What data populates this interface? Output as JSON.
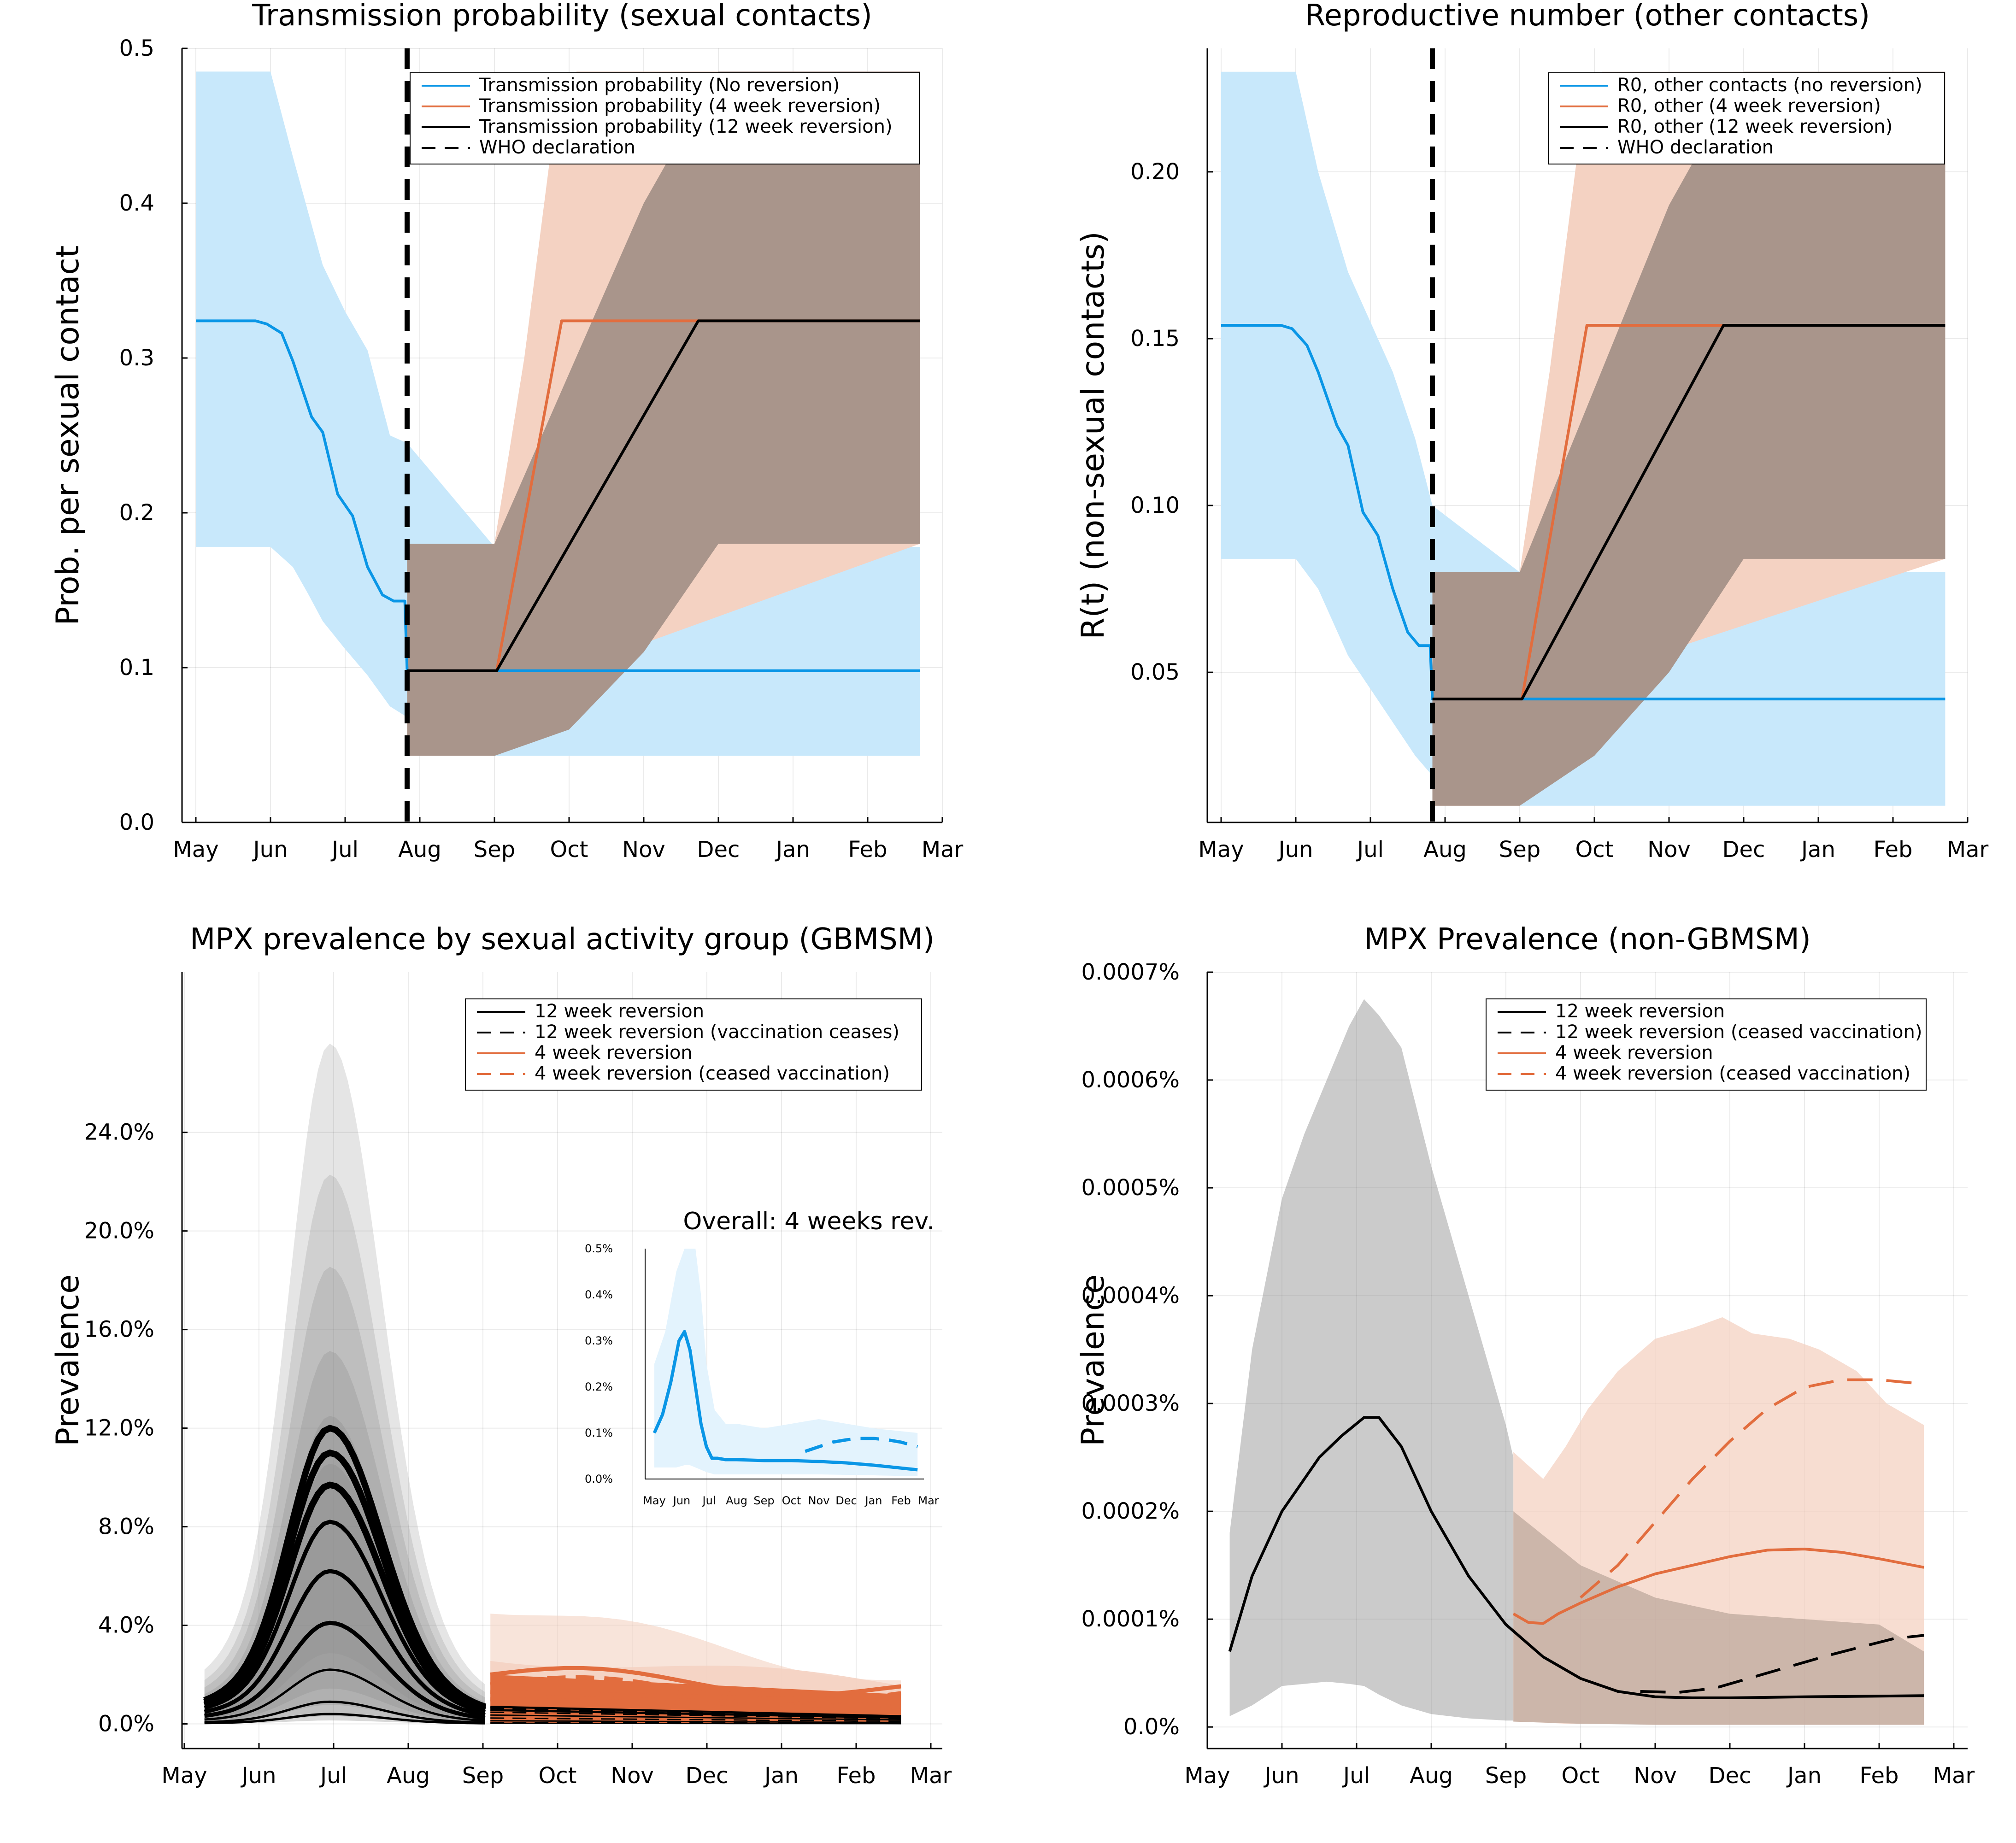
{
  "months": [
    "May",
    "Jun",
    "Jul",
    "Aug",
    "Sep",
    "Oct",
    "Nov",
    "Dec",
    "Jan",
    "Feb",
    "Mar"
  ],
  "colors": {
    "blue": "#0a96e6",
    "orange": "#e26d3e",
    "black": "#000000",
    "blue_band": "#c8e8fb",
    "orange_band": "#f4d2c2",
    "brown_band": "#a9958b",
    "dark_band": "#8c8c8c"
  },
  "chart_data": [
    {
      "id": "p1",
      "type": "line",
      "title": "Transmission probability (sexual contacts)",
      "xlabel": "",
      "ylabel": "Prob. per sexual contact",
      "yticks": [
        "0.0",
        "0.1",
        "0.2",
        "0.3",
        "0.4",
        "0.5"
      ],
      "ylim": [
        0,
        0.5
      ],
      "legend": [
        "Transmission probability (No reversion)",
        "Transmission probability (4 week reversion)",
        "Transmission probability (12 week reversion)",
        "WHO declaration"
      ],
      "who_declaration": 2.83,
      "series": [
        {
          "name": "Transmission probability (No reversion)",
          "color": "blue",
          "x": [
            0,
            0.5,
            0.8,
            0.95,
            1.15,
            1.3,
            1.55,
            1.7,
            1.9,
            2.1,
            2.3,
            2.5,
            2.65,
            2.8,
            2.83,
            2.9,
            4,
            9.7
          ],
          "y": [
            0.324,
            0.324,
            0.324,
            0.322,
            0.316,
            0.298,
            0.262,
            0.252,
            0.212,
            0.198,
            0.165,
            0.147,
            0.143,
            0.143,
            0.098,
            0.098,
            0.098,
            0.098
          ],
          "band": {
            "color": "blue_band",
            "x": [
              0,
              1,
              1.3,
              1.5,
              1.7,
              2,
              2.3,
              2.6,
              2.83,
              4,
              9.7
            ],
            "lo": [
              0.178,
              0.178,
              0.165,
              0.148,
              0.13,
              0.112,
              0.095,
              0.075,
              0.068,
              0.043,
              0.043
            ],
            "hi": [
              0.485,
              0.485,
              0.43,
              0.395,
              0.36,
              0.33,
              0.305,
              0.25,
              0.245,
              0.178,
              0.178
            ]
          }
        },
        {
          "name": "Transmission probability (4 week reversion)",
          "color": "orange",
          "x": [
            2.83,
            4.03,
            4.9,
            9.7
          ],
          "y": [
            0.098,
            0.098,
            0.324,
            0.324
          ],
          "band": {
            "color": "orange_band",
            "x": [
              2.83,
              4,
              4.4,
              4.8,
              5.1,
              9.7
            ],
            "lo": [
              0.043,
              0.043,
              0.06,
              0.08,
              0.1,
              0.18
            ],
            "hi": [
              0.18,
              0.18,
              0.3,
              0.45,
              0.485,
              0.485
            ]
          }
        },
        {
          "name": "Transmission probability (12 week reversion)",
          "color": "black",
          "x": [
            2.83,
            4.03,
            6.73,
            9.7
          ],
          "y": [
            0.098,
            0.098,
            0.324,
            0.324
          ],
          "band": {
            "color": "brown_band",
            "x": [
              2.83,
              4,
              5,
              6,
              7,
              9.7
            ],
            "lo": [
              0.043,
              0.043,
              0.06,
              0.11,
              0.18,
              0.18
            ],
            "hi": [
              0.18,
              0.18,
              0.29,
              0.4,
              0.485,
              0.485
            ]
          }
        }
      ]
    },
    {
      "id": "p2",
      "type": "line",
      "title": "Reproductive number (other contacts)",
      "xlabel": "",
      "ylabel": "R(t) (non-sexual contacts)",
      "yticks": [
        "0.05",
        "0.10",
        "0.15",
        "0.20"
      ],
      "ylim": [
        0.005,
        0.237
      ],
      "legend": [
        "R0, other contacts (no reversion)",
        "R0, other (4 week reversion)",
        "R0, other (12 week reversion)",
        "WHO declaration"
      ],
      "who_declaration": 2.83,
      "series": [
        {
          "name": "R0, other contacts (no reversion)",
          "color": "blue",
          "x": [
            0,
            0.5,
            0.8,
            0.95,
            1.15,
            1.3,
            1.55,
            1.7,
            1.9,
            2.1,
            2.3,
            2.5,
            2.65,
            2.8,
            2.83,
            2.9,
            4,
            9.7
          ],
          "y": [
            0.154,
            0.154,
            0.154,
            0.153,
            0.148,
            0.14,
            0.124,
            0.118,
            0.098,
            0.091,
            0.075,
            0.062,
            0.058,
            0.058,
            0.042,
            0.042,
            0.042,
            0.042
          ],
          "band": {
            "color": "blue_band",
            "x": [
              0,
              1,
              1.3,
              1.5,
              1.7,
              2,
              2.3,
              2.6,
              2.83,
              4,
              9.7
            ],
            "lo": [
              0.084,
              0.084,
              0.075,
              0.065,
              0.055,
              0.045,
              0.035,
              0.025,
              0.019,
              0.01,
              0.01
            ],
            "hi": [
              0.23,
              0.23,
              0.2,
              0.185,
              0.17,
              0.155,
              0.14,
              0.12,
              0.1,
              0.08,
              0.08
            ]
          }
        },
        {
          "name": "R0, other (4 week reversion)",
          "color": "orange",
          "x": [
            2.83,
            4.03,
            4.9,
            9.7
          ],
          "y": [
            0.042,
            0.042,
            0.154,
            0.154
          ],
          "band": {
            "color": "orange_band",
            "x": [
              2.83,
              4,
              4.4,
              4.8,
              5.1,
              9.7
            ],
            "lo": [
              0.01,
              0.01,
              0.02,
              0.035,
              0.05,
              0.084
            ],
            "hi": [
              0.08,
              0.08,
              0.14,
              0.21,
              0.23,
              0.23
            ]
          }
        },
        {
          "name": "R0, other (12 week reversion)",
          "color": "black",
          "x": [
            2.83,
            4.03,
            6.73,
            9.7
          ],
          "y": [
            0.042,
            0.042,
            0.154,
            0.154
          ],
          "band": {
            "color": "brown_band",
            "x": [
              2.83,
              4,
              5,
              6,
              7,
              9.7
            ],
            "lo": [
              0.01,
              0.01,
              0.025,
              0.05,
              0.084,
              0.084
            ],
            "hi": [
              0.08,
              0.08,
              0.135,
              0.19,
              0.23,
              0.23
            ]
          }
        }
      ]
    },
    {
      "id": "p3",
      "type": "line",
      "title": "MPX prevalence by sexual activity group (GBMSM)",
      "xlabel": "",
      "ylabel": "Prevalence",
      "yticks": [
        "0.0%",
        "4.0%",
        "8.0%",
        "12.0%",
        "16.0%",
        "20.0%",
        "24.0%"
      ],
      "ylim": [
        -0.01,
        0.305
      ],
      "legend": [
        "12 week reversion",
        "12 week reversion (vaccination ceases)",
        "4 week reversion",
        "4 week reversion (ceased vaccination)"
      ],
      "group_peaks": [
        0.12,
        0.11,
        0.097,
        0.082,
        0.062,
        0.041,
        0.022,
        0.009,
        0.004
      ],
      "x_start": 0.27,
      "x_peak": 1.95,
      "x_switch": 4.1,
      "x_end": 9.6,
      "late_values": [
        0.02,
        0.016,
        0.013,
        0.01
      ],
      "inset": {
        "title": "Overall: 4 weeks rev.",
        "yticks": [
          "0.0%",
          "0.1%",
          "0.2%",
          "0.3%",
          "0.4%",
          "0.5%"
        ],
        "ylim": [
          0,
          0.005
        ],
        "series": [
          {
            "name": "",
            "color": "blue",
            "style": "solid",
            "x": [
              0,
              0.3,
              0.6,
              0.9,
              1.1,
              1.3,
              1.5,
              1.7,
              1.9,
              2.1,
              2.3,
              2.6,
              3,
              4,
              5,
              6,
              7,
              8,
              9.6
            ],
            "y": [
              0.001,
              0.0014,
              0.0021,
              0.003,
              0.0032,
              0.0028,
              0.002,
              0.0012,
              0.0007,
              0.00045,
              0.00045,
              0.00042,
              0.00042,
              0.0004,
              0.0004,
              0.00038,
              0.00035,
              0.0003,
              0.0002
            ]
          },
          {
            "name": "",
            "color": "blue",
            "style": "dashed",
            "x": [
              5.5,
              6,
              6.5,
              7,
              7.5,
              8,
              8.5,
              9,
              9.6
            ],
            "y": [
              0.0006,
              0.0007,
              0.0008,
              0.00085,
              0.00088,
              0.00088,
              0.00085,
              0.0008,
              0.0007
            ]
          }
        ],
        "band": {
          "x": [
            0,
            0.4,
            0.8,
            1.1,
            1.3,
            1.5,
            1.7,
            1.9,
            2.2,
            2.6,
            3,
            4,
            5,
            6,
            7,
            8,
            9.6
          ],
          "lo": [
            0.00025,
            0.00025,
            0.00025,
            0.0003,
            0.0003,
            0.00025,
            0.0002,
            0.00015,
            0.0001,
            0.0001,
            0.0001,
            0.0001,
            0.0001,
            0.0001,
            9e-05,
            8e-05,
            6e-05
          ],
          "hi": [
            0.0025,
            0.0032,
            0.0045,
            0.005,
            0.005,
            0.005,
            0.004,
            0.0025,
            0.0015,
            0.0012,
            0.0012,
            0.0011,
            0.0012,
            0.0013,
            0.0012,
            0.0011,
            0.001
          ]
        }
      }
    },
    {
      "id": "p4",
      "type": "line",
      "title": "MPX Prevalence (non-GBMSM)",
      "xlabel": "",
      "ylabel": "Prevalence",
      "yticks": [
        "0.0%",
        "0.0001%",
        "0.0002%",
        "0.0003%",
        "0.0004%",
        "0.0005%",
        "0.0006%",
        "0.0007%"
      ],
      "ylim": [
        -2e-07,
        7e-06
      ],
      "legend": [
        "12 week reversion",
        "12 week reversion (ceased vaccination)",
        "4 week reversion",
        "4 week reversion (ceased vaccination)"
      ],
      "series": [
        {
          "name": "12 week reversion",
          "color": "black",
          "style": "solid",
          "x": [
            0.3,
            0.6,
            1,
            1.3,
            1.5,
            1.8,
            2.1,
            2.3,
            2.6,
            3,
            3.5,
            4,
            4.5,
            5,
            5.5,
            6,
            6.5,
            7,
            8,
            9.6
          ],
          "y": [
            7e-07,
            1.4e-06,
            2e-06,
            2.3e-06,
            2.5e-06,
            2.7e-06,
            2.87e-06,
            2.87e-06,
            2.6e-06,
            2e-06,
            1.4e-06,
            9.5e-07,
            6.5e-07,
            4.5e-07,
            3.3e-07,
            2.8e-07,
            2.7e-07,
            2.7e-07,
            2.8e-07,
            2.9e-07
          ]
        },
        {
          "name": "12 week reversion (ceased vaccination)",
          "color": "black",
          "style": "dashed",
          "x": [
            5.8,
            6.3,
            6.8,
            7.3,
            7.8,
            8.3,
            8.8,
            9.2,
            9.6
          ],
          "y": [
            3.3e-07,
            3.2e-07,
            3.6e-07,
            4.6e-07,
            5.6e-07,
            6.6e-07,
            7.5e-07,
            8.2e-07,
            8.5e-07
          ]
        },
        {
          "name": "4 week reversion",
          "color": "orange",
          "style": "solid",
          "x": [
            4.1,
            4.3,
            4.5,
            4.7,
            5,
            5.5,
            6,
            6.5,
            7,
            7.5,
            8,
            8.5,
            9,
            9.6
          ],
          "y": [
            1.05e-06,
            9.7e-07,
            9.6e-07,
            1.05e-06,
            1.15e-06,
            1.3e-06,
            1.42e-06,
            1.5e-06,
            1.58e-06,
            1.64e-06,
            1.65e-06,
            1.62e-06,
            1.56e-06,
            1.48e-06
          ]
        },
        {
          "name": "4 week reversion (ceased vaccination)",
          "color": "orange",
          "style": "dashed",
          "x": [
            5,
            5.5,
            6,
            6.5,
            7,
            7.5,
            8,
            8.5,
            9,
            9.6
          ],
          "y": [
            1.2e-06,
            1.5e-06,
            1.9e-06,
            2.3e-06,
            2.65e-06,
            2.95e-06,
            3.15e-06,
            3.22e-06,
            3.22e-06,
            3.18e-06
          ]
        }
      ],
      "bands": [
        {
          "color": "dark_band",
          "x": [
            0.3,
            0.6,
            1,
            1.3,
            1.6,
            1.9,
            2.1,
            2.3,
            2.6,
            3,
            3.5,
            4,
            4.1
          ],
          "lo": [
            1e-07,
            2e-07,
            3.8e-07,
            4e-07,
            4.2e-07,
            4e-07,
            3.8e-07,
            3e-07,
            2e-07,
            1.2e-07,
            8e-08,
            6e-08,
            6e-08
          ],
          "hi": [
            1.8e-06,
            3.5e-06,
            4.9e-06,
            5.5e-06,
            6e-06,
            6.5e-06,
            6.75e-06,
            6.6e-06,
            6.3e-06,
            5.2e-06,
            4e-06,
            2.8e-06,
            2.5e-06
          ]
        },
        {
          "color": "orange_band",
          "x": [
            4.1,
            4.5,
            4.8,
            5.1,
            5.5,
            6,
            6.5,
            6.9,
            7.3,
            7.8,
            8.2,
            8.7,
            9.1,
            9.6
          ],
          "lo": [
            5e-08,
            4e-08,
            3e-08,
            3e-08,
            3e-08,
            2e-08,
            2e-08,
            2e-08,
            2e-08,
            2e-08,
            2e-08,
            2e-08,
            2e-08,
            2e-08
          ],
          "hi": [
            2.55e-06,
            2.3e-06,
            2.6e-06,
            2.95e-06,
            3.3e-06,
            3.6e-06,
            3.7e-06,
            3.8e-06,
            3.65e-06,
            3.6e-06,
            3.5e-06,
            3.3e-06,
            3e-06,
            2.8e-06
          ]
        },
        {
          "color": "brown_band",
          "x": [
            4.1,
            5,
            6,
            7,
            8,
            9,
            9.6
          ],
          "lo": [
            5e-08,
            3e-08,
            2e-08,
            2e-08,
            2e-08,
            2e-08,
            2e-08
          ],
          "hi": [
            2e-06,
            1.5e-06,
            1.2e-06,
            1.05e-06,
            1e-06,
            9.5e-07,
            7e-07
          ]
        }
      ]
    }
  ]
}
